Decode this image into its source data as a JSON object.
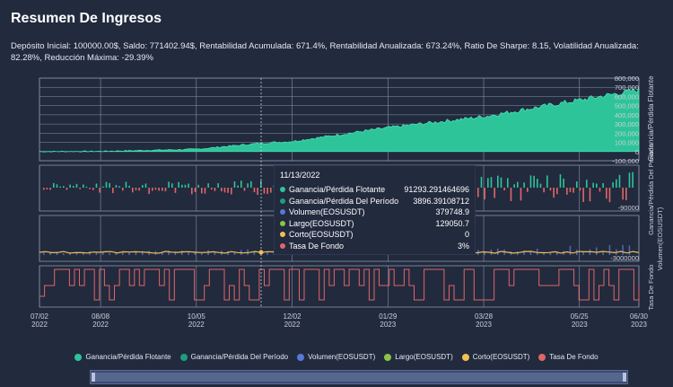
{
  "title": "Resumen De Ingresos",
  "stats": "Depósito Inicial: 100000.00$, Saldo: 771402.94$, Rentabilidad Acumulada: 671.4%, Rentabilidad Anualizada: 673.24%, Ratio De Sharpe: 8.15, Volatilidad Anualizada: 82.28%, Reducción Máxima: -29.39%",
  "axis": {
    "y1_ticks": [
      "800,000",
      "700,000",
      "600,000",
      "500,000",
      "400,000",
      "300,000",
      "200,000",
      "100,000",
      "0",
      "-100,000"
    ],
    "y1_label": "Ganancia/Pérdida Flotante",
    "y2_tick": "-90000",
    "y2_label": "Ganancia/Pérdida Del Período",
    "y3_tick": "-3000000",
    "y3_label": "Volumen(EOSUSDT)",
    "y4_label": "Tasa De Fondo",
    "x_ticks": [
      {
        "md": "07/02",
        "y": "2022"
      },
      {
        "md": "08/08",
        "y": "2022"
      },
      {
        "md": "10/05",
        "y": "2022"
      },
      {
        "md": "12/02",
        "y": "2022"
      },
      {
        "md": "01/29",
        "y": "2023"
      },
      {
        "md": "03/28",
        "y": "2023"
      },
      {
        "md": "05/25",
        "y": "2023"
      },
      {
        "md": "06/30",
        "y": "2023"
      }
    ]
  },
  "tooltip": {
    "date": "11/13/2022",
    "rows": [
      {
        "name": "Ganancia/Pérdida Flotante",
        "value": "91293.291464696",
        "color": "#2ec49a"
      },
      {
        "name": "Ganancia/Pérdida Del Período",
        "value": "3896.39108712",
        "color": "#1e9e7e"
      },
      {
        "name": "Volumen(EOSUSDT)",
        "value": "379748.9",
        "color": "#5b78d6"
      },
      {
        "name": "Largo(EOSUSDT)",
        "value": "129050.7",
        "color": "#8bc34a"
      },
      {
        "name": "Corto(EOSUSDT)",
        "value": "0",
        "color": "#f2c14e"
      },
      {
        "name": "Tasa De Fondo",
        "value": "3%",
        "color": "#e06666"
      }
    ]
  },
  "legend": [
    {
      "label": "Ganancia/Pérdida Flotante",
      "color": "#2ec49a"
    },
    {
      "label": "Ganancia/Pérdida Del Período",
      "color": "#1e9e7e"
    },
    {
      "label": "Volumen(EOSUSDT)",
      "color": "#5b78d6"
    },
    {
      "label": "Largo(EOSUSDT)",
      "color": "#8bc34a"
    },
    {
      "label": "Corto(EOSUSDT)",
      "color": "#f2c14e"
    },
    {
      "label": "Tasa De Fondo",
      "color": "#e06666"
    }
  ],
  "chart_data": {
    "type": "area",
    "y_range": [
      -100000,
      800000
    ],
    "x": [
      "07/02/2022",
      "08/08/2022",
      "10/05/2022",
      "11/13/2022",
      "12/02/2022",
      "01/29/2023",
      "03/28/2023",
      "05/25/2023",
      "06/30/2023"
    ],
    "series": [
      {
        "name": "Ganancia/Pérdida Flotante",
        "values": [
          0,
          2000,
          25000,
          91293,
          110000,
          260000,
          380000,
          560000,
          671400
        ]
      }
    ]
  }
}
